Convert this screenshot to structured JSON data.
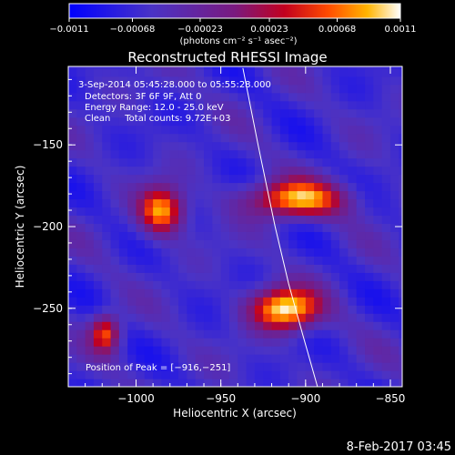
{
  "chart_data": {
    "type": "heatmap",
    "title": "Reconstructed RHESSI Image",
    "xlabel": "Heliocentric X (arcsec)",
    "ylabel": "Heliocentric Y (arcsec)",
    "xlim": [
      -1040,
      -843
    ],
    "ylim": [
      -298,
      -102
    ],
    "xticks": [
      {
        "value": -1000,
        "label": "−1000"
      },
      {
        "value": -950,
        "label": "−950"
      },
      {
        "value": -900,
        "label": "−900"
      },
      {
        "value": -850,
        "label": "−850"
      }
    ],
    "yticks": [
      {
        "value": -150,
        "label": "−150"
      },
      {
        "value": -200,
        "label": "−200"
      },
      {
        "value": -250,
        "label": "−250"
      }
    ],
    "colorbar": {
      "range": [
        -0.0011,
        0.0011
      ],
      "ticks": [
        {
          "value": -0.0011,
          "label": "−0.0011"
        },
        {
          "value": -0.00068,
          "label": "−0.00068"
        },
        {
          "value": -0.00023,
          "label": "−0.00023"
        },
        {
          "value": 0.00023,
          "label": "0.00023"
        },
        {
          "value": 0.00068,
          "label": "0.00068"
        },
        {
          "value": 0.0011,
          "label": "0.0011"
        }
      ],
      "units": "(photons cm⁻² s⁻¹ asec⁻²)"
    },
    "annotations": [
      "3-Sep-2014 05:45:28.000 to 05:55:28.000",
      "Detectors: 3F 6F 9F, Att 0",
      "Energy Range: 12.0 - 25.0 keV",
      "Clean     Total counts: 9.72E+03"
    ],
    "peak_label": "Position of Peak = [−916,−251]",
    "peak": {
      "x": -916,
      "y": -251,
      "value": 0.0011
    },
    "sources": [
      {
        "x": -912,
        "y": -250,
        "value": 0.0011,
        "sx": 14,
        "sy": 9
      },
      {
        "x": -985,
        "y": -190,
        "value": 0.00085,
        "sx": 9,
        "sy": 10
      },
      {
        "x": -905,
        "y": -183,
        "value": 0.00085,
        "sx": 20,
        "sy": 8
      },
      {
        "x": -1018,
        "y": -265,
        "value": 0.0006,
        "sx": 6,
        "sy": 8
      }
    ],
    "background_min": -0.0011,
    "limb_curve": [
      {
        "x": -937,
        "y": -103
      },
      {
        "x": -928,
        "y": -150
      },
      {
        "x": -918,
        "y": -200
      },
      {
        "x": -910,
        "y": -235
      },
      {
        "x": -902,
        "y": -265
      },
      {
        "x": -893,
        "y": -298
      }
    ]
  },
  "footer": {
    "timestamp": "8-Feb-2017 03:45"
  }
}
